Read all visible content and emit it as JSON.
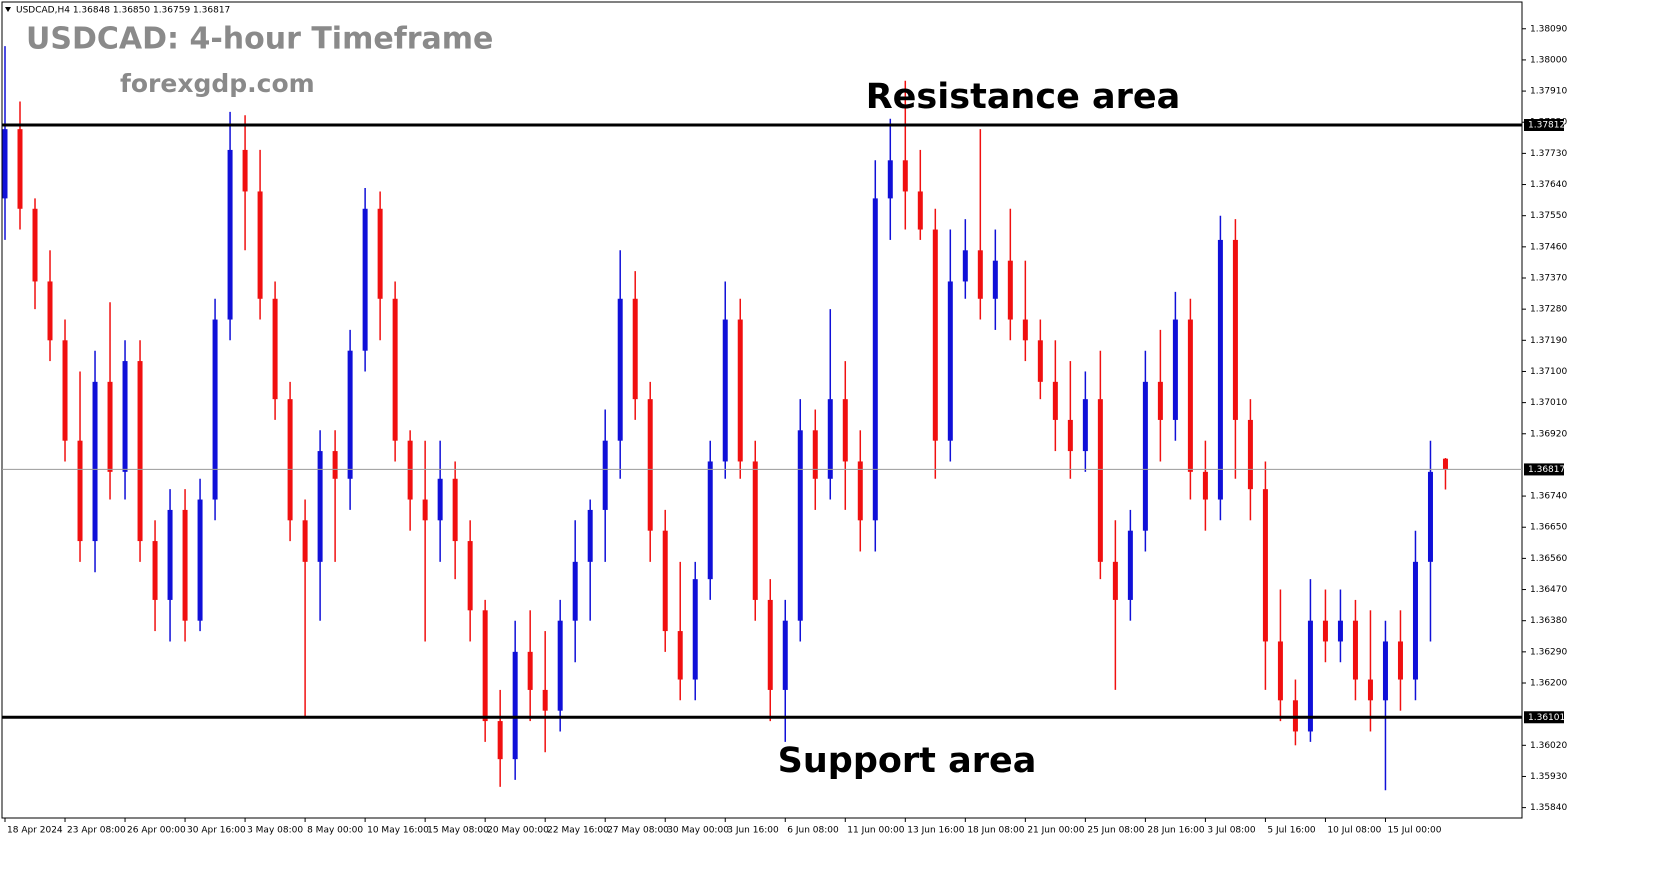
{
  "chart_data": {
    "type": "candlestick",
    "header": "USDCAD,H4  1.36848 1.36850 1.36759 1.36817",
    "title": "USDCAD: 4-hour Timeframe",
    "subtitle": "forexgdp.com",
    "annotations": [
      "Resistance area",
      "Support area"
    ],
    "up_color": "#1010d8",
    "down_color": "#f01010",
    "ylim": [
      1.3581,
      1.3815
    ],
    "xlim": [
      -0.2,
      101.1
    ],
    "yticks": [
      {
        "value": 1.3809,
        "label": "1.38090"
      },
      {
        "value": 1.38,
        "label": "1.38000"
      },
      {
        "value": 1.3791,
        "label": "1.37910"
      },
      {
        "value": 1.3782,
        "label": "1.37820"
      },
      {
        "value": 1.3773,
        "label": "1.37730"
      },
      {
        "value": 1.3764,
        "label": "1.37640"
      },
      {
        "value": 1.3755,
        "label": "1.37550"
      },
      {
        "value": 1.3746,
        "label": "1.37460"
      },
      {
        "value": 1.3737,
        "label": "1.37370"
      },
      {
        "value": 1.3728,
        "label": "1.37280"
      },
      {
        "value": 1.3719,
        "label": "1.37190"
      },
      {
        "value": 1.371,
        "label": "1.37100"
      },
      {
        "value": 1.3701,
        "label": "1.37010"
      },
      {
        "value": 1.3692,
        "label": "1.36920"
      },
      {
        "value": 1.3674,
        "label": "1.36740"
      },
      {
        "value": 1.3665,
        "label": "1.36650"
      },
      {
        "value": 1.3656,
        "label": "1.36560"
      },
      {
        "value": 1.3647,
        "label": "1.36470"
      },
      {
        "value": 1.3638,
        "label": "1.36380"
      },
      {
        "value": 1.3629,
        "label": "1.36290"
      },
      {
        "value": 1.362,
        "label": "1.36200"
      },
      {
        "value": 1.3602,
        "label": "1.36020"
      },
      {
        "value": 1.3593,
        "label": "1.35930"
      },
      {
        "value": 1.3584,
        "label": "1.35840"
      }
    ],
    "xticks": [
      {
        "value": 0,
        "label": "18 Apr 2024"
      },
      {
        "value": 4,
        "label": "23 Apr 08:00"
      },
      {
        "value": 8,
        "label": "26 Apr 00:00"
      },
      {
        "value": 12,
        "label": "30 Apr 16:00"
      },
      {
        "value": 16,
        "label": "3 May 08:00"
      },
      {
        "value": 20,
        "label": "8 May 00:00"
      },
      {
        "value": 24,
        "label": "10 May 16:00"
      },
      {
        "value": 28,
        "label": "15 May 08:00"
      },
      {
        "value": 32,
        "label": "20 May 00:00"
      },
      {
        "value": 36,
        "label": "22 May 16:00"
      },
      {
        "value": 40,
        "label": "27 May 08:00"
      },
      {
        "value": 44,
        "label": "30 May 00:00"
      },
      {
        "value": 48,
        "label": "3 Jun 16:00"
      },
      {
        "value": 52,
        "label": "6 Jun 08:00"
      },
      {
        "value": 56,
        "label": "11 Jun 00:00"
      },
      {
        "value": 60,
        "label": "13 Jun 16:00"
      },
      {
        "value": 64,
        "label": "18 Jun 08:00"
      },
      {
        "value": 68,
        "label": "21 Jun 00:00"
      },
      {
        "value": 72,
        "label": "25 Jun 08:00"
      },
      {
        "value": 76,
        "label": "28 Jun 16:00"
      },
      {
        "value": 80,
        "label": "3 Jul 08:00"
      },
      {
        "value": 84,
        "label": "5 Jul 16:00"
      },
      {
        "value": 88,
        "label": "10 Jul 08:00"
      },
      {
        "value": 92,
        "label": "15 Jul 00:00"
      }
    ],
    "price_lines": [
      {
        "name": "resistance",
        "value": 1.37812,
        "color": "#000000"
      },
      {
        "name": "support",
        "value": 1.36101,
        "color": "#000000"
      },
      {
        "name": "current",
        "value": 1.36817,
        "color": "#9a9a9a"
      }
    ],
    "ohlc": [
      [
        1.376,
        1.3804,
        1.3748,
        1.378
      ],
      [
        1.378,
        1.3788,
        1.3751,
        1.3757
      ],
      [
        1.3757,
        1.376,
        1.3728,
        1.3736
      ],
      [
        1.3736,
        1.3745,
        1.3713,
        1.3719
      ],
      [
        1.3719,
        1.3725,
        1.3684,
        1.369
      ],
      [
        1.369,
        1.371,
        1.3655,
        1.3661
      ],
      [
        1.3661,
        1.3716,
        1.3652,
        1.3707
      ],
      [
        1.3707,
        1.373,
        1.3673,
        1.3681
      ],
      [
        1.3681,
        1.3719,
        1.3673,
        1.3713
      ],
      [
        1.3713,
        1.3719,
        1.3655,
        1.3661
      ],
      [
        1.3661,
        1.3667,
        1.3635,
        1.3644
      ],
      [
        1.3644,
        1.3676,
        1.3632,
        1.367
      ],
      [
        1.367,
        1.3676,
        1.3632,
        1.3638
      ],
      [
        1.3638,
        1.3679,
        1.3635,
        1.3673
      ],
      [
        1.3673,
        1.3731,
        1.3667,
        1.3725
      ],
      [
        1.3725,
        1.3785,
        1.3719,
        1.3774
      ],
      [
        1.3774,
        1.3784,
        1.3745,
        1.3762
      ],
      [
        1.3762,
        1.3774,
        1.3725,
        1.3731
      ],
      [
        1.3731,
        1.3736,
        1.3696,
        1.3702
      ],
      [
        1.3702,
        1.3707,
        1.3661,
        1.3667
      ],
      [
        1.3667,
        1.3673,
        1.361,
        1.3655
      ],
      [
        1.3655,
        1.3693,
        1.3638,
        1.3687
      ],
      [
        1.3687,
        1.3693,
        1.3655,
        1.3679
      ],
      [
        1.3679,
        1.3722,
        1.367,
        1.3716
      ],
      [
        1.3716,
        1.3763,
        1.371,
        1.3757
      ],
      [
        1.3757,
        1.3762,
        1.3719,
        1.3731
      ],
      [
        1.3731,
        1.3736,
        1.3684,
        1.369
      ],
      [
        1.369,
        1.3693,
        1.3664,
        1.3673
      ],
      [
        1.3673,
        1.369,
        1.3632,
        1.3667
      ],
      [
        1.3667,
        1.369,
        1.3655,
        1.3679
      ],
      [
        1.3679,
        1.3684,
        1.365,
        1.3661
      ],
      [
        1.3661,
        1.3667,
        1.3632,
        1.3641
      ],
      [
        1.3641,
        1.3644,
        1.3603,
        1.3609
      ],
      [
        1.3609,
        1.3618,
        1.359,
        1.3598
      ],
      [
        1.3598,
        1.3638,
        1.3592,
        1.3629
      ],
      [
        1.3629,
        1.3641,
        1.3609,
        1.3618
      ],
      [
        1.3618,
        1.3635,
        1.36,
        1.3612
      ],
      [
        1.3612,
        1.3644,
        1.3606,
        1.3638
      ],
      [
        1.3638,
        1.3667,
        1.3626,
        1.3655
      ],
      [
        1.3655,
        1.3673,
        1.3638,
        1.367
      ],
      [
        1.367,
        1.3699,
        1.3655,
        1.369
      ],
      [
        1.369,
        1.3745,
        1.3679,
        1.3731
      ],
      [
        1.3731,
        1.3739,
        1.3696,
        1.3702
      ],
      [
        1.3702,
        1.3707,
        1.3655,
        1.3664
      ],
      [
        1.3664,
        1.367,
        1.3629,
        1.3635
      ],
      [
        1.3635,
        1.3655,
        1.3615,
        1.3621
      ],
      [
        1.3621,
        1.3655,
        1.3615,
        1.365
      ],
      [
        1.365,
        1.369,
        1.3644,
        1.3684
      ],
      [
        1.3684,
        1.3736,
        1.3679,
        1.3725
      ],
      [
        1.3725,
        1.3731,
        1.3679,
        1.3684
      ],
      [
        1.3684,
        1.369,
        1.3638,
        1.3644
      ],
      [
        1.3644,
        1.365,
        1.3609,
        1.3618
      ],
      [
        1.3618,
        1.3644,
        1.3603,
        1.3638
      ],
      [
        1.3638,
        1.3702,
        1.3632,
        1.3693
      ],
      [
        1.3693,
        1.3699,
        1.367,
        1.3679
      ],
      [
        1.3679,
        1.3728,
        1.3673,
        1.3702
      ],
      [
        1.3702,
        1.3713,
        1.367,
        1.3684
      ],
      [
        1.3684,
        1.3693,
        1.3658,
        1.3667
      ],
      [
        1.3667,
        1.3771,
        1.3658,
        1.376
      ],
      [
        1.376,
        1.3783,
        1.3748,
        1.3771
      ],
      [
        1.3771,
        1.3794,
        1.3751,
        1.3762
      ],
      [
        1.3762,
        1.3774,
        1.3748,
        1.3751
      ],
      [
        1.3751,
        1.3757,
        1.3679,
        1.369
      ],
      [
        1.369,
        1.3751,
        1.3684,
        1.3736
      ],
      [
        1.3736,
        1.3754,
        1.3731,
        1.3745
      ],
      [
        1.3745,
        1.378,
        1.3725,
        1.3731
      ],
      [
        1.3731,
        1.3751,
        1.3722,
        1.3742
      ],
      [
        1.3742,
        1.3757,
        1.3719,
        1.3725
      ],
      [
        1.3725,
        1.3742,
        1.3713,
        1.3719
      ],
      [
        1.3719,
        1.3725,
        1.3702,
        1.3707
      ],
      [
        1.3707,
        1.3719,
        1.3687,
        1.3696
      ],
      [
        1.3696,
        1.3713,
        1.3679,
        1.3687
      ],
      [
        1.3687,
        1.371,
        1.3681,
        1.3702
      ],
      [
        1.3702,
        1.3716,
        1.365,
        1.3655
      ],
      [
        1.3655,
        1.3667,
        1.3618,
        1.3644
      ],
      [
        1.3644,
        1.367,
        1.3638,
        1.3664
      ],
      [
        1.3664,
        1.3716,
        1.3658,
        1.3707
      ],
      [
        1.3707,
        1.3722,
        1.3684,
        1.3696
      ],
      [
        1.3696,
        1.3733,
        1.369,
        1.3725
      ],
      [
        1.3725,
        1.3731,
        1.3673,
        1.3681
      ],
      [
        1.3681,
        1.369,
        1.3664,
        1.3673
      ],
      [
        1.3673,
        1.3755,
        1.3667,
        1.3748
      ],
      [
        1.3748,
        1.3754,
        1.3679,
        1.3696
      ],
      [
        1.3696,
        1.3702,
        1.3667,
        1.3676
      ],
      [
        1.3676,
        1.3684,
        1.3618,
        1.3632
      ],
      [
        1.3632,
        1.3647,
        1.3609,
        1.3615
      ],
      [
        1.3615,
        1.3621,
        1.3602,
        1.3606
      ],
      [
        1.3606,
        1.365,
        1.3603,
        1.3638
      ],
      [
        1.3638,
        1.3647,
        1.3626,
        1.3632
      ],
      [
        1.3632,
        1.3647,
        1.3626,
        1.3638
      ],
      [
        1.3638,
        1.3644,
        1.3615,
        1.3621
      ],
      [
        1.3621,
        1.3641,
        1.3606,
        1.3615
      ],
      [
        1.3615,
        1.3638,
        1.3589,
        1.3632
      ],
      [
        1.3632,
        1.3641,
        1.3612,
        1.3621
      ],
      [
        1.3621,
        1.3664,
        1.3615,
        1.3655
      ],
      [
        1.3655,
        1.369,
        1.3632,
        1.3681
      ],
      [
        1.36848,
        1.3685,
        1.36759,
        1.36817
      ]
    ]
  }
}
